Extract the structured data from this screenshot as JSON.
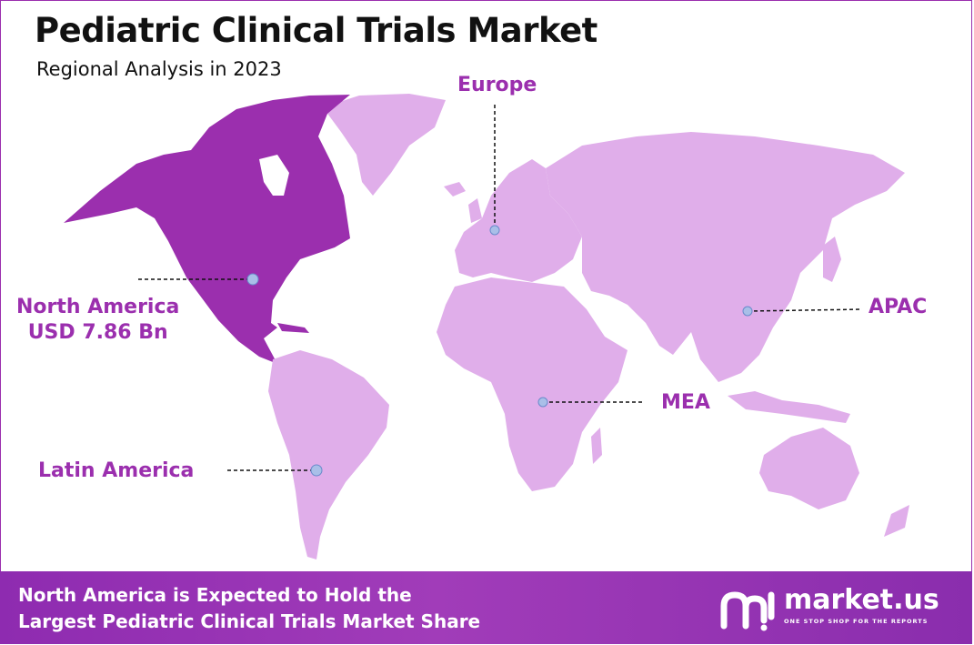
{
  "title": "Pediatric Clinical Trials Market",
  "subtitle": "Regional Analysis in 2023",
  "regions": {
    "north_america": {
      "name": "North America",
      "value": "USD 7.86 Bn",
      "highlight": true
    },
    "europe": {
      "name": "Europe"
    },
    "apac": {
      "name": "APAC"
    },
    "mea": {
      "name": "MEA"
    },
    "latin_america": {
      "name": "Latin America"
    }
  },
  "footer": {
    "line1": "North America is Expected to Hold the",
    "line2": "Largest Pediatric Clinical Trials Market Share"
  },
  "brand": {
    "name": "market.us",
    "tagline": "ONE STOP SHOP FOR THE REPORTS"
  },
  "colors": {
    "highlight": "#9b2fae",
    "land": "#e0aeea",
    "marker": "#a9bfe8",
    "footer": "#9433b3"
  }
}
